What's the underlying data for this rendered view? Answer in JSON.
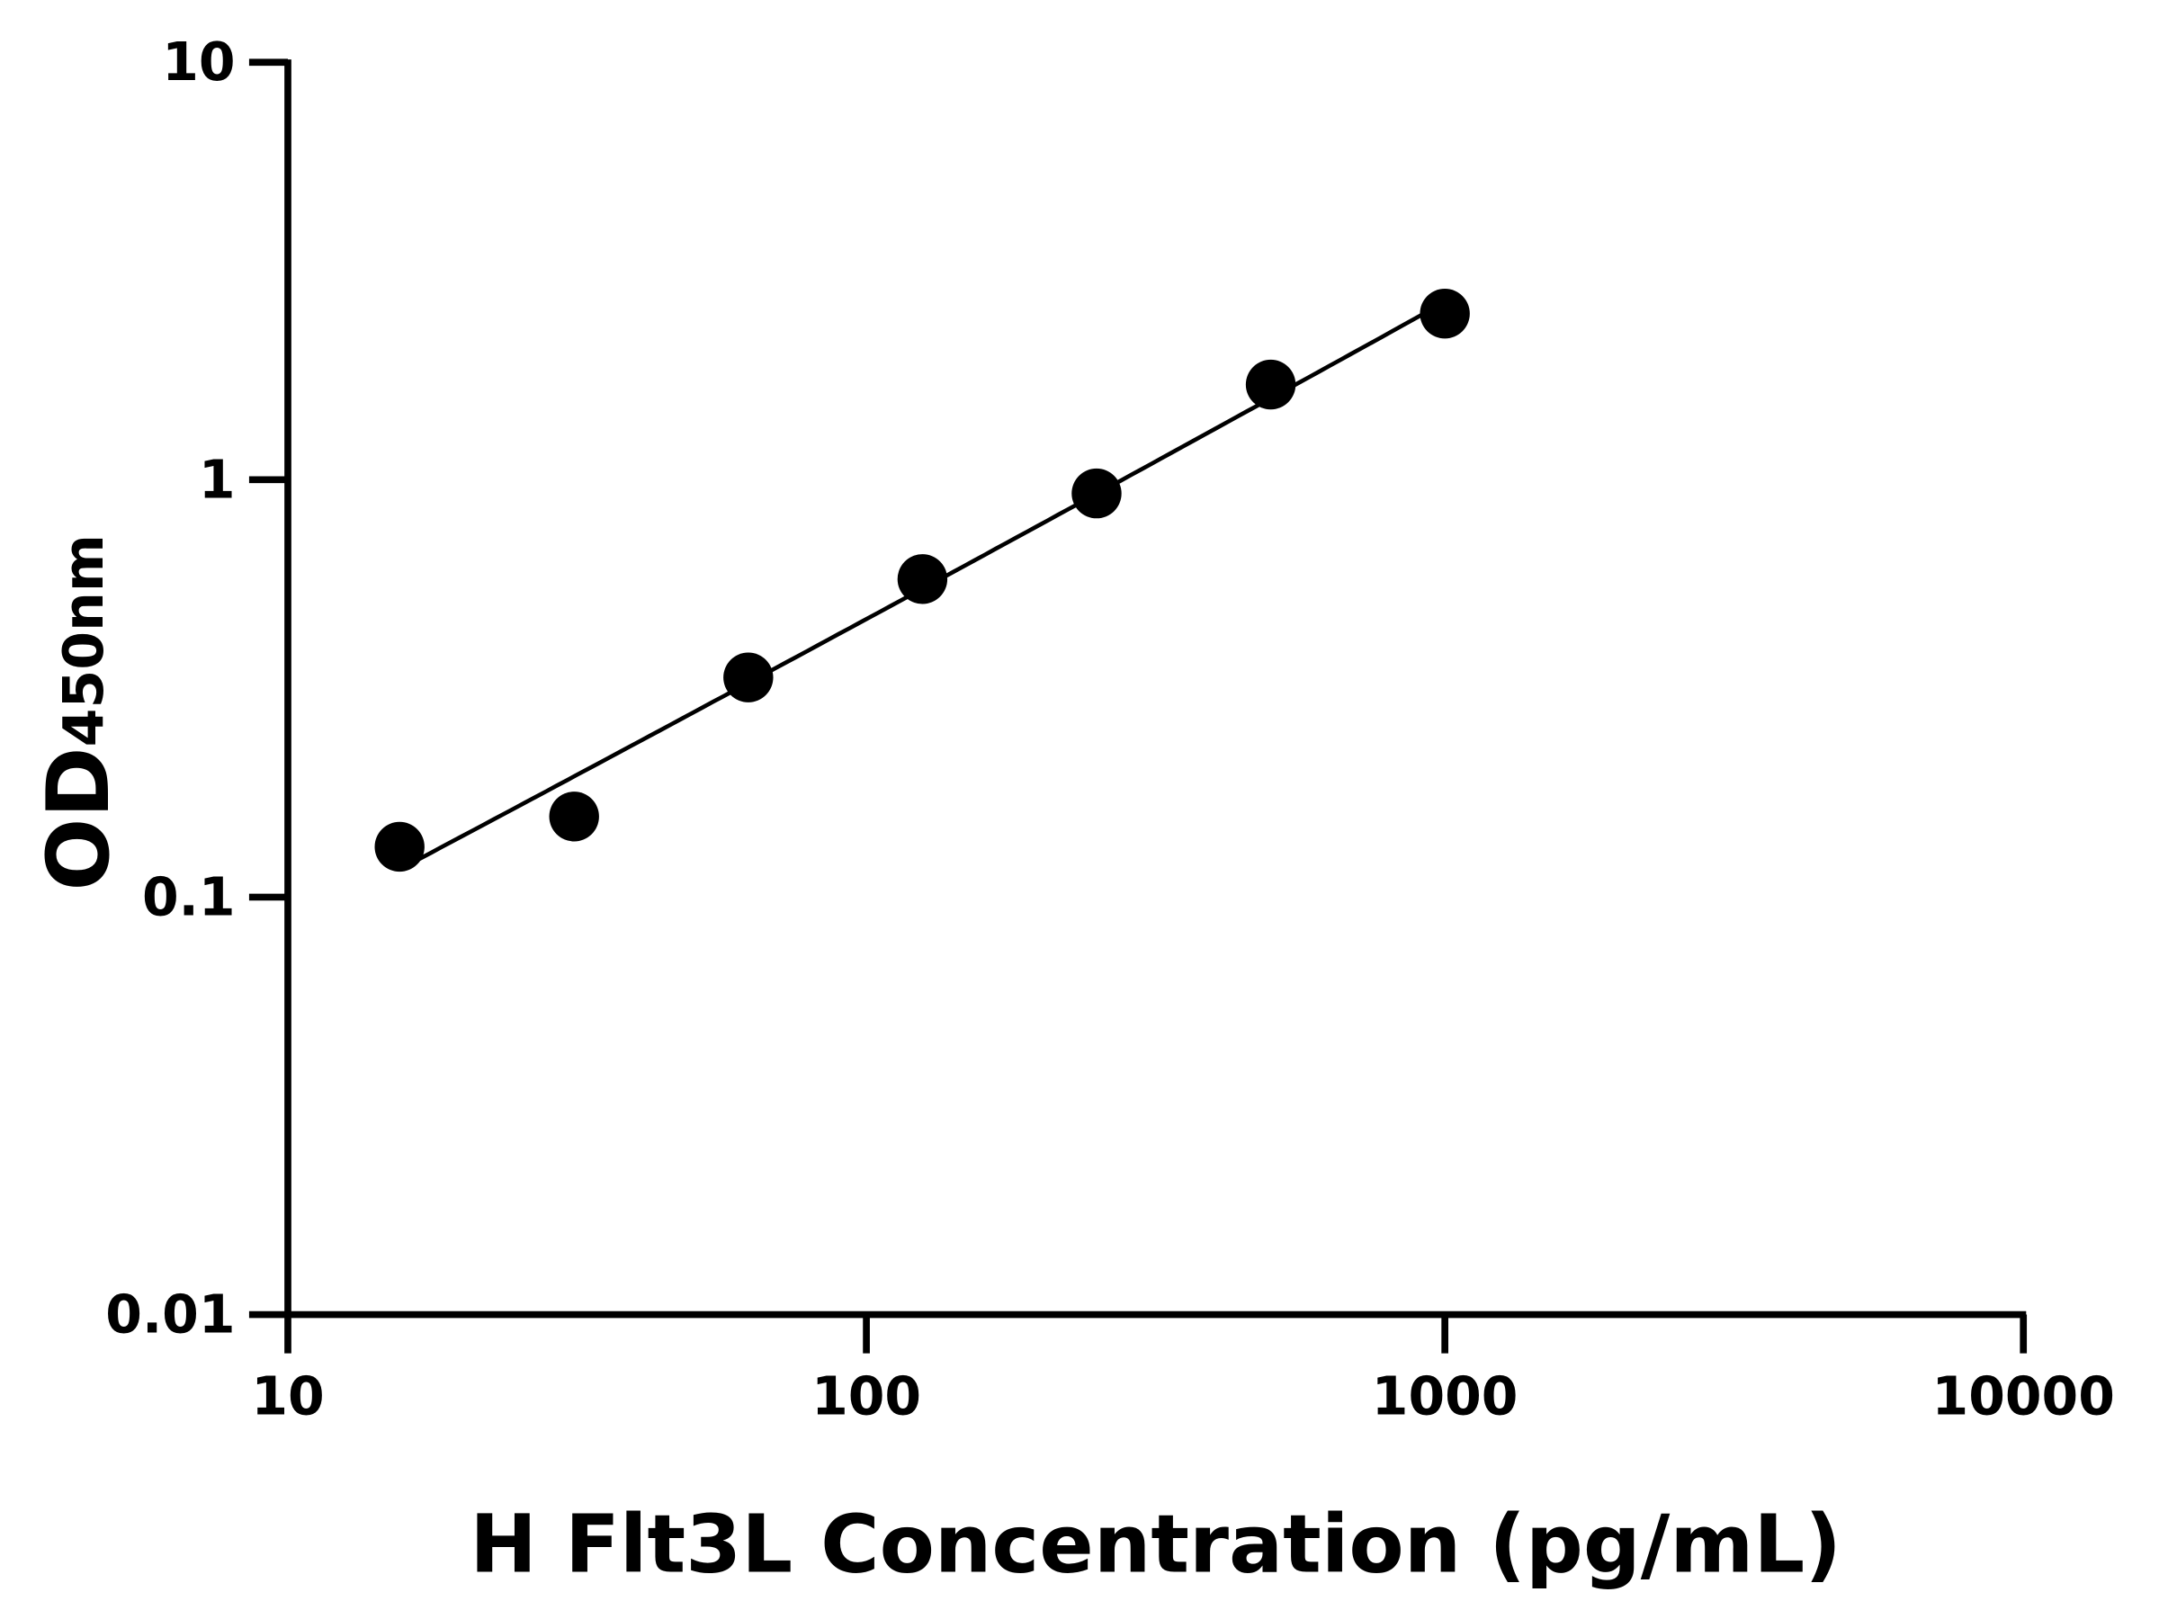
{
  "chart_data": {
    "type": "scatter",
    "xlabel": "H Flt3L Concentration (pg/mL)",
    "ylabel_main": "OD",
    "ylabel_sub": "450nm",
    "xscale": "log",
    "yscale": "log",
    "xlim": [
      10,
      10000
    ],
    "ylim": [
      0.01,
      10
    ],
    "xticks": [
      "10",
      "100",
      "1000",
      "10000"
    ],
    "yticks": [
      "0.01",
      "0.1",
      "1",
      "10"
    ],
    "grid": false,
    "fit_curve": true,
    "color": "#000000",
    "points": [
      {
        "x": 15.6,
        "y": 0.132
      },
      {
        "x": 31.25,
        "y": 0.156
      },
      {
        "x": 62.5,
        "y": 0.336
      },
      {
        "x": 125,
        "y": 0.578
      },
      {
        "x": 250,
        "y": 0.927
      },
      {
        "x": 500,
        "y": 1.69
      },
      {
        "x": 1000,
        "y": 2.5
      }
    ]
  }
}
